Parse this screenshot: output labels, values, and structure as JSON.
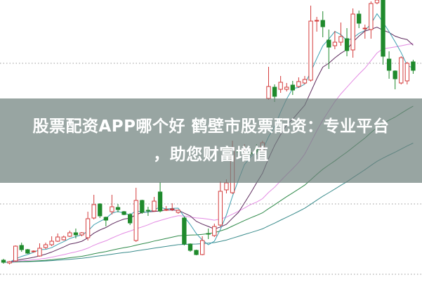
{
  "banner": {
    "title_line1": "股票配资APP哪个好 鹤壁市股票配资：专业平台",
    "title_line2": "，助您财富增值"
  },
  "colors": {
    "up": "#d43c3c",
    "down": "#1f8a2c",
    "ma5": "#3d9fb0",
    "ma10": "#5e2b5e",
    "ma20": "#e38be3",
    "ma40": "#2f8a4a",
    "ma60": "#3a8c8c",
    "grid": "#9a9a9a"
  },
  "chart_data": {
    "type": "candlestick",
    "axes_shown": false,
    "grid": "dotted horizontal",
    "series_order": [
      "open",
      "close",
      "high",
      "low"
    ],
    "ohlc": [
      [
        30,
        27,
        32,
        25
      ],
      [
        26,
        28,
        29,
        24
      ],
      [
        29,
        50,
        51,
        28
      ],
      [
        51,
        45,
        55,
        42
      ],
      [
        45,
        40,
        46,
        39
      ],
      [
        42,
        43,
        44,
        41
      ],
      [
        36,
        47,
        54,
        35
      ],
      [
        48,
        52,
        55,
        46
      ],
      [
        52,
        57,
        64,
        50
      ],
      [
        57,
        63,
        68,
        56
      ],
      [
        59,
        63,
        65,
        58
      ],
      [
        64,
        69,
        72,
        63
      ],
      [
        69,
        66,
        75,
        61
      ],
      [
        66,
        69,
        70,
        64
      ],
      [
        62,
        89,
        99,
        58
      ],
      [
        90,
        109,
        123,
        88
      ],
      [
        110,
        93,
        111,
        90
      ],
      [
        91,
        87,
        92,
        78
      ],
      [
        99,
        106,
        123,
        95
      ],
      [
        105,
        102,
        110,
        98
      ],
      [
        99,
        95,
        100,
        94
      ],
      [
        95,
        83,
        97,
        80
      ],
      [
        58,
        115,
        133,
        56
      ],
      [
        115,
        98,
        116,
        96
      ],
      [
        101,
        100,
        106,
        93
      ],
      [
        100,
        114,
        120,
        99
      ],
      [
        127,
        100,
        141,
        98
      ],
      [
        102,
        102,
        107,
        100
      ],
      [
        102,
        103,
        111,
        100
      ],
      [
        98,
        101,
        102,
        96
      ],
      [
        90,
        53,
        92,
        51
      ],
      [
        53,
        44,
        54,
        42
      ],
      [
        44,
        38,
        45,
        37
      ],
      [
        38,
        58,
        64,
        37
      ],
      [
        68,
        67,
        75,
        60
      ],
      [
        65,
        78,
        82,
        63
      ],
      [
        80,
        128,
        142,
        78
      ],
      [
        130,
        140,
        145,
        125
      ],
      [
        126,
        190,
        200,
        124
      ],
      [
        186,
        184,
        192,
        175
      ],
      [
        188,
        188,
        195,
        180
      ],
      [
        183,
        181,
        190,
        178
      ],
      [
        188,
        184,
        195,
        180
      ],
      [
        186,
        197,
        200,
        184
      ],
      [
        260,
        277,
        305,
        258
      ],
      [
        276,
        263,
        280,
        255
      ],
      [
        273,
        283,
        292,
        268
      ],
      [
        273,
        276,
        282,
        270
      ],
      [
        279,
        272,
        285,
        265
      ],
      [
        277,
        284,
        290,
        275
      ],
      [
        282,
        287,
        292,
        280
      ],
      [
        286,
        370,
        392,
        284
      ],
      [
        371,
        371,
        376,
        355
      ],
      [
        371,
        362,
        384,
        347
      ],
      [
        343,
        333,
        358,
        302
      ],
      [
        335,
        340,
        356,
        330
      ],
      [
        340,
        348,
        368,
        335
      ],
      [
        345,
        328,
        360,
        320
      ],
      [
        329,
        380,
        388,
        318
      ],
      [
        380,
        367,
        385,
        360
      ],
      [
        360,
        360,
        365,
        345
      ],
      [
        358,
        395,
        398,
        345
      ],
      [
        396,
        400,
        402,
        394
      ],
      [
        400,
        320,
        402,
        308
      ],
      [
        316,
        300,
        327,
        288
      ],
      [
        299,
        288,
        300,
        273
      ],
      [
        282,
        318,
        320,
        280
      ],
      [
        285,
        310,
        312,
        280
      ],
      [
        312,
        300,
        315,
        295
      ]
    ],
    "moving_averages": [
      5,
      10,
      20,
      40,
      60
    ]
  }
}
